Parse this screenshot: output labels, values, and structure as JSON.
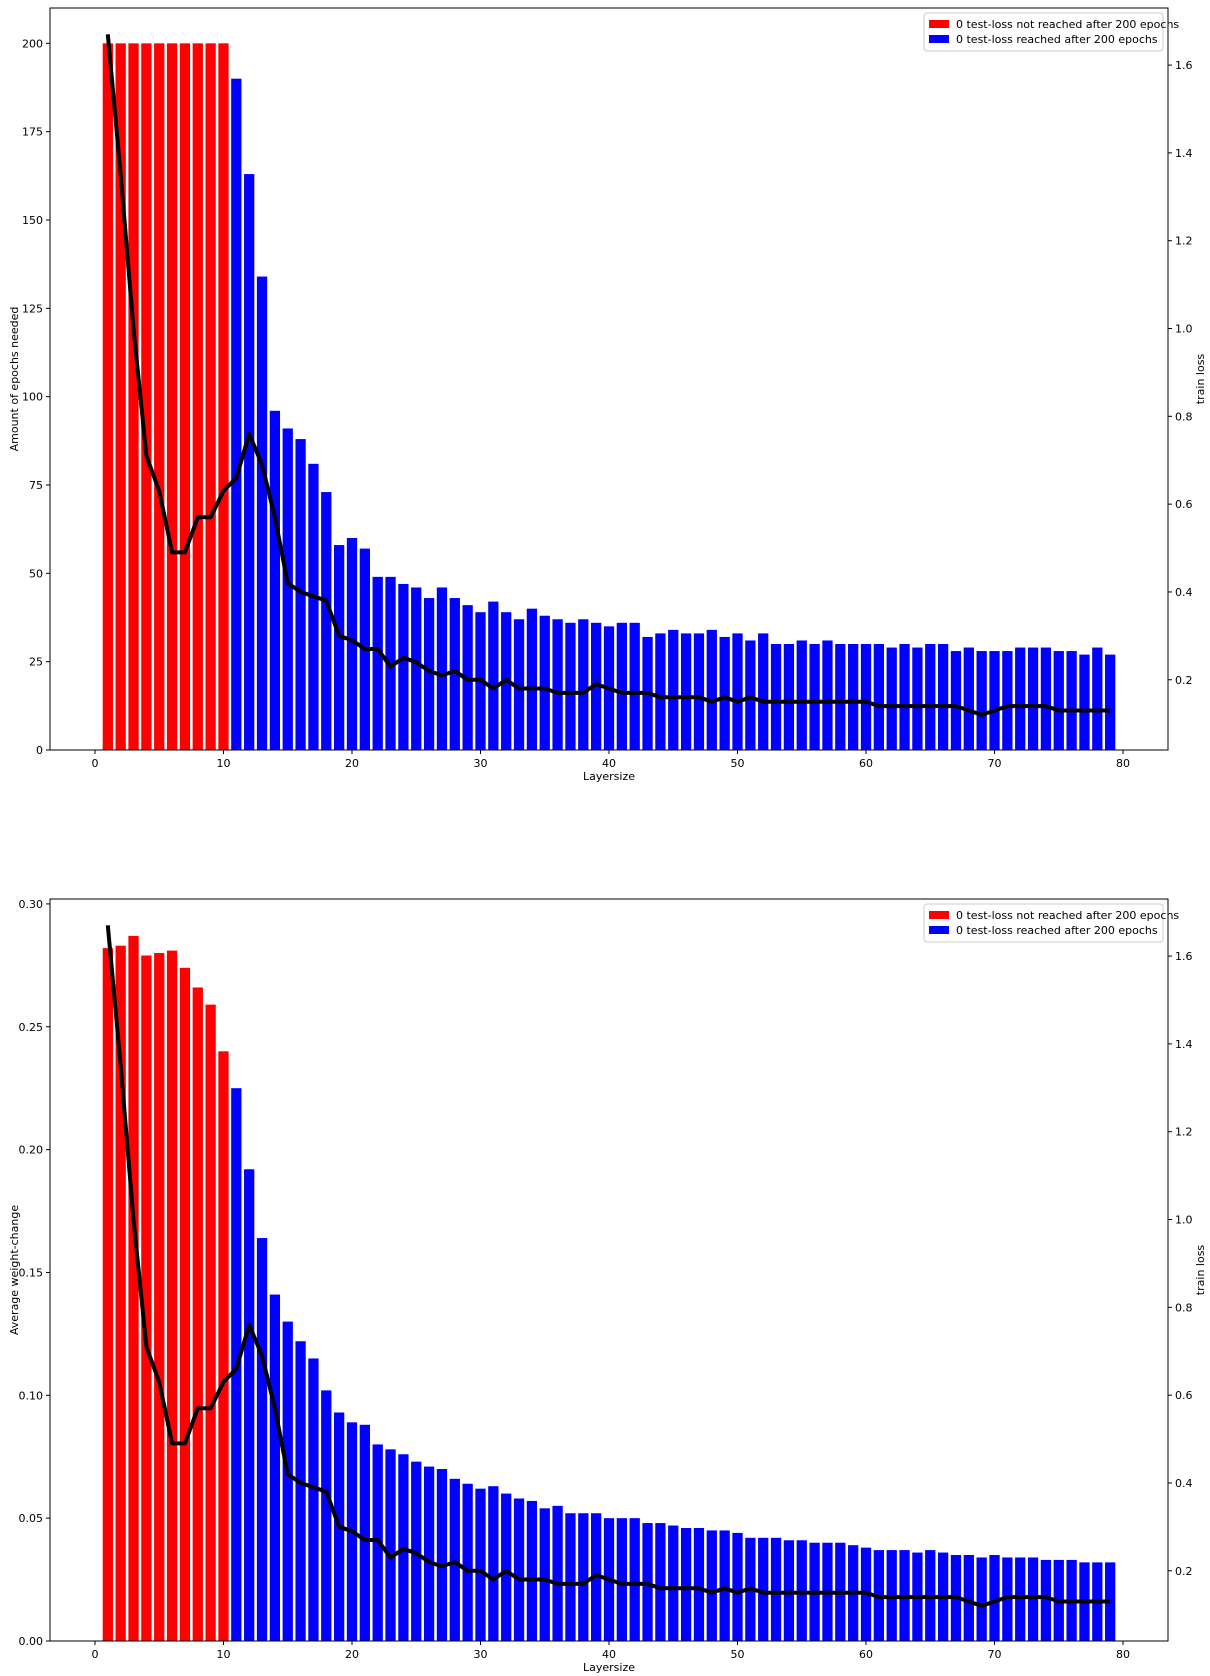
{
  "chart_data": [
    {
      "type": "bar",
      "xlabel": "Layersize",
      "ylabel": "Amount of epochs needed",
      "y2label": "train loss",
      "xlim": [
        -3.5,
        83.5
      ],
      "ylim": [
        0,
        210
      ],
      "y2lim": [
        0.04,
        1.73
      ],
      "xticks": [
        0,
        10,
        20,
        30,
        40,
        50,
        60,
        70,
        80
      ],
      "yticks": [
        0,
        25,
        50,
        75,
        100,
        125,
        150,
        175,
        200
      ],
      "y2ticks": [
        0.2,
        0.4,
        0.6,
        0.8,
        1.0,
        1.2,
        1.4,
        1.6
      ],
      "legend_position": "top-right",
      "legend": [
        {
          "label": "0 test-loss not reached after 200 epochs",
          "color": "#ff0000"
        },
        {
          "label": "0 test-loss reached after 200 epochs",
          "color": "#0000ff"
        }
      ],
      "colors": {
        "not_reached": "#ff0000",
        "reached": "#0000ff",
        "line": "#000000"
      },
      "x": [
        1,
        2,
        3,
        4,
        5,
        6,
        7,
        8,
        9,
        10,
        11,
        12,
        13,
        14,
        15,
        16,
        17,
        18,
        19,
        20,
        21,
        22,
        23,
        24,
        25,
        26,
        27,
        28,
        29,
        30,
        31,
        32,
        33,
        34,
        35,
        36,
        37,
        38,
        39,
        40,
        41,
        42,
        43,
        44,
        45,
        46,
        47,
        48,
        49,
        50,
        51,
        52,
        53,
        54,
        55,
        56,
        57,
        58,
        59,
        60,
        61,
        62,
        63,
        64,
        65,
        66,
        67,
        68,
        69,
        70,
        71,
        72,
        73,
        74,
        75,
        76,
        77,
        78,
        79
      ],
      "values": [
        200,
        200,
        200,
        200,
        200,
        200,
        200,
        200,
        200,
        200,
        190,
        163,
        134,
        96,
        91,
        88,
        81,
        73,
        58,
        60,
        57,
        49,
        49,
        47,
        46,
        43,
        46,
        43,
        41,
        39,
        42,
        39,
        37,
        40,
        38,
        37,
        36,
        37,
        36,
        35,
        36,
        36,
        32,
        33,
        34,
        33,
        33,
        34,
        32,
        33,
        31,
        33,
        30,
        30,
        31,
        30,
        31,
        30,
        30,
        30,
        30,
        29,
        30,
        29,
        30,
        30,
        28,
        29,
        28,
        28,
        28,
        29,
        29,
        29,
        28,
        28,
        27,
        29,
        27
      ],
      "reached": [
        false,
        false,
        false,
        false,
        false,
        false,
        false,
        false,
        false,
        false,
        true,
        true,
        true,
        true,
        true,
        true,
        true,
        true,
        true,
        true,
        true,
        true,
        true,
        true,
        true,
        true,
        true,
        true,
        true,
        true,
        true,
        true,
        true,
        true,
        true,
        true,
        true,
        true,
        true,
        true,
        true,
        true,
        true,
        true,
        true,
        true,
        true,
        true,
        true,
        true,
        true,
        true,
        true,
        true,
        true,
        true,
        true,
        true,
        true,
        true,
        true,
        true,
        true,
        true,
        true,
        true,
        true,
        true,
        true,
        true,
        true,
        true,
        true,
        true,
        true,
        true,
        true,
        true,
        true
      ],
      "train_loss": [
        1.67,
        1.35,
        1.0,
        0.71,
        0.63,
        0.49,
        0.49,
        0.57,
        0.57,
        0.63,
        0.66,
        0.76,
        0.69,
        0.57,
        0.42,
        0.4,
        0.39,
        0.38,
        0.3,
        0.29,
        0.27,
        0.27,
        0.23,
        0.25,
        0.24,
        0.22,
        0.21,
        0.22,
        0.2,
        0.2,
        0.18,
        0.2,
        0.18,
        0.18,
        0.18,
        0.17,
        0.17,
        0.17,
        0.19,
        0.18,
        0.17,
        0.17,
        0.17,
        0.16,
        0.16,
        0.16,
        0.16,
        0.15,
        0.16,
        0.15,
        0.16,
        0.15,
        0.15,
        0.15,
        0.15,
        0.15,
        0.15,
        0.15,
        0.15,
        0.15,
        0.14,
        0.14,
        0.14,
        0.14,
        0.14,
        0.14,
        0.14,
        0.13,
        0.12,
        0.13,
        0.14,
        0.14,
        0.14,
        0.14,
        0.13,
        0.13,
        0.13,
        0.13,
        0.13
      ]
    },
    {
      "type": "bar",
      "xlabel": "Layersize",
      "ylabel": "Average weight-change",
      "y2label": "train loss",
      "xlim": [
        -3.5,
        83.5
      ],
      "ylim": [
        0,
        0.302
      ],
      "y2lim": [
        0.04,
        1.73
      ],
      "xticks": [
        0,
        10,
        20,
        30,
        40,
        50,
        60,
        70,
        80
      ],
      "yticks": [
        0.0,
        0.05,
        0.1,
        0.15,
        0.2,
        0.25,
        0.3
      ],
      "yticklabels": [
        "0.00",
        "0.05",
        "0.10",
        "0.15",
        "0.20",
        "0.25",
        "0.30"
      ],
      "y2ticks": [
        0.2,
        0.4,
        0.6,
        0.8,
        1.0,
        1.2,
        1.4,
        1.6
      ],
      "legend_position": "top-right",
      "legend": [
        {
          "label": "0 test-loss not reached after 200 epochs",
          "color": "#ff0000"
        },
        {
          "label": "0 test-loss reached after 200 epochs",
          "color": "#0000ff"
        }
      ],
      "colors": {
        "not_reached": "#ff0000",
        "reached": "#0000ff",
        "line": "#000000"
      },
      "x": [
        1,
        2,
        3,
        4,
        5,
        6,
        7,
        8,
        9,
        10,
        11,
        12,
        13,
        14,
        15,
        16,
        17,
        18,
        19,
        20,
        21,
        22,
        23,
        24,
        25,
        26,
        27,
        28,
        29,
        30,
        31,
        32,
        33,
        34,
        35,
        36,
        37,
        38,
        39,
        40,
        41,
        42,
        43,
        44,
        45,
        46,
        47,
        48,
        49,
        50,
        51,
        52,
        53,
        54,
        55,
        56,
        57,
        58,
        59,
        60,
        61,
        62,
        63,
        64,
        65,
        66,
        67,
        68,
        69,
        70,
        71,
        72,
        73,
        74,
        75,
        76,
        77,
        78,
        79
      ],
      "values": [
        0.282,
        0.283,
        0.287,
        0.279,
        0.28,
        0.281,
        0.274,
        0.266,
        0.259,
        0.24,
        0.225,
        0.192,
        0.164,
        0.141,
        0.13,
        0.122,
        0.115,
        0.102,
        0.093,
        0.089,
        0.088,
        0.08,
        0.078,
        0.076,
        0.073,
        0.071,
        0.07,
        0.066,
        0.064,
        0.062,
        0.063,
        0.06,
        0.058,
        0.057,
        0.054,
        0.055,
        0.052,
        0.052,
        0.052,
        0.05,
        0.05,
        0.05,
        0.048,
        0.048,
        0.047,
        0.046,
        0.046,
        0.045,
        0.045,
        0.044,
        0.042,
        0.042,
        0.042,
        0.041,
        0.041,
        0.04,
        0.04,
        0.04,
        0.039,
        0.038,
        0.037,
        0.037,
        0.037,
        0.036,
        0.037,
        0.036,
        0.035,
        0.035,
        0.034,
        0.035,
        0.034,
        0.034,
        0.034,
        0.033,
        0.033,
        0.033,
        0.032,
        0.032,
        0.032
      ],
      "reached": [
        false,
        false,
        false,
        false,
        false,
        false,
        false,
        false,
        false,
        false,
        true,
        true,
        true,
        true,
        true,
        true,
        true,
        true,
        true,
        true,
        true,
        true,
        true,
        true,
        true,
        true,
        true,
        true,
        true,
        true,
        true,
        true,
        true,
        true,
        true,
        true,
        true,
        true,
        true,
        true,
        true,
        true,
        true,
        true,
        true,
        true,
        true,
        true,
        true,
        true,
        true,
        true,
        true,
        true,
        true,
        true,
        true,
        true,
        true,
        true,
        true,
        true,
        true,
        true,
        true,
        true,
        true,
        true,
        true,
        true,
        true,
        true,
        true,
        true,
        true,
        true,
        true,
        true,
        true
      ],
      "train_loss": [
        1.67,
        1.35,
        1.0,
        0.71,
        0.63,
        0.49,
        0.49,
        0.57,
        0.57,
        0.63,
        0.66,
        0.76,
        0.69,
        0.57,
        0.42,
        0.4,
        0.39,
        0.38,
        0.3,
        0.29,
        0.27,
        0.27,
        0.23,
        0.25,
        0.24,
        0.22,
        0.21,
        0.22,
        0.2,
        0.2,
        0.18,
        0.2,
        0.18,
        0.18,
        0.18,
        0.17,
        0.17,
        0.17,
        0.19,
        0.18,
        0.17,
        0.17,
        0.17,
        0.16,
        0.16,
        0.16,
        0.16,
        0.15,
        0.16,
        0.15,
        0.16,
        0.15,
        0.15,
        0.15,
        0.15,
        0.15,
        0.15,
        0.15,
        0.15,
        0.15,
        0.14,
        0.14,
        0.14,
        0.14,
        0.14,
        0.14,
        0.14,
        0.13,
        0.12,
        0.13,
        0.14,
        0.14,
        0.14,
        0.14,
        0.13,
        0.13,
        0.13,
        0.13,
        0.13
      ]
    }
  ]
}
